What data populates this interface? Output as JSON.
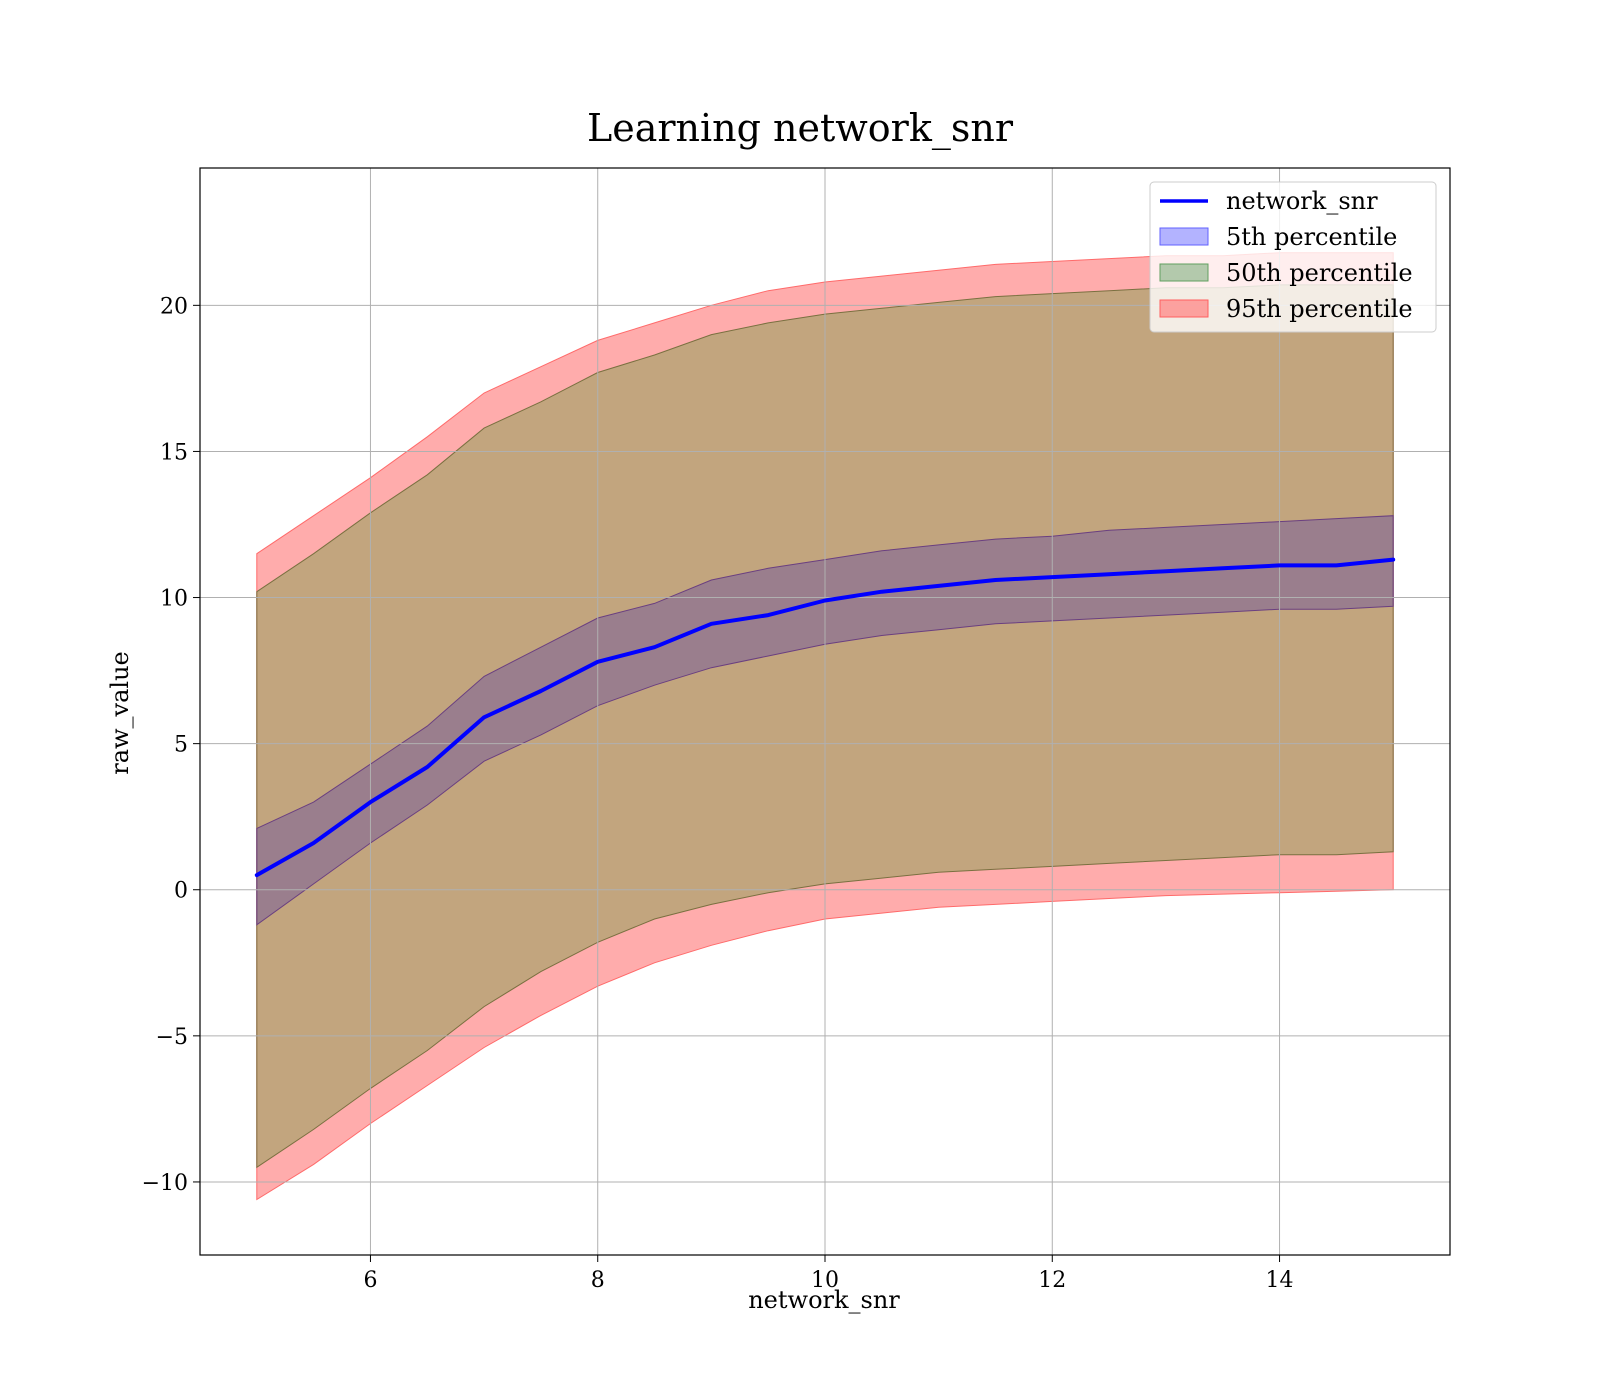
{
  "chart_data": {
    "type": "line",
    "title": "Learning network_snr",
    "xlabel": "network_snr",
    "ylabel": "raw_value",
    "xlim": [
      4.5,
      15.5
    ],
    "ylim": [
      -12.5,
      24.7
    ],
    "xticks": [
      "6",
      "8",
      "10",
      "12",
      "14"
    ],
    "yticks": [
      "−10",
      "−5",
      "0",
      "5",
      "10",
      "15",
      "20"
    ],
    "grid": true,
    "legend_position": "top-right",
    "colors": {
      "line": "#0000ff",
      "band5": "#8080ff",
      "band50": "#80b080",
      "band95": "#ff8080"
    },
    "x": [
      5,
      5.5,
      6,
      6.5,
      7,
      7.5,
      8,
      8.5,
      9,
      9.5,
      10,
      10.5,
      11,
      11.5,
      12,
      12.5,
      13,
      13.5,
      14,
      14.5,
      15
    ],
    "series": [
      {
        "name": "network_snr",
        "values": [
          0.5,
          1.6,
          3.0,
          4.2,
          5.9,
          6.8,
          7.8,
          8.3,
          9.1,
          9.4,
          9.9,
          10.2,
          10.4,
          10.6,
          10.7,
          10.8,
          10.9,
          11.0,
          11.1,
          11.1,
          11.3
        ]
      },
      {
        "name": "5th percentile",
        "lower": [
          -1.2,
          0.2,
          1.6,
          2.9,
          4.4,
          5.3,
          6.3,
          7.0,
          7.6,
          8.0,
          8.4,
          8.7,
          8.9,
          9.1,
          9.2,
          9.3,
          9.4,
          9.5,
          9.6,
          9.6,
          9.7
        ],
        "upper": [
          2.1,
          3.0,
          4.3,
          5.6,
          7.3,
          8.3,
          9.3,
          9.8,
          10.6,
          11.0,
          11.3,
          11.6,
          11.8,
          12.0,
          12.1,
          12.3,
          12.4,
          12.5,
          12.6,
          12.7,
          12.8
        ]
      },
      {
        "name": "50th percentile",
        "lower": [
          -9.5,
          -8.2,
          -6.8,
          -5.5,
          -4.0,
          -2.8,
          -1.8,
          -1.0,
          -0.5,
          -0.1,
          0.2,
          0.4,
          0.6,
          0.7,
          0.8,
          0.9,
          1.0,
          1.1,
          1.2,
          1.2,
          1.3
        ],
        "upper": [
          10.2,
          11.5,
          12.9,
          14.2,
          15.8,
          16.7,
          17.7,
          18.3,
          19.0,
          19.4,
          19.7,
          19.9,
          20.1,
          20.3,
          20.4,
          20.5,
          20.6,
          20.6,
          20.7,
          20.7,
          20.7
        ]
      },
      {
        "name": "95th percentile",
        "lower": [
          -10.6,
          -9.4,
          -8.0,
          -6.7,
          -5.4,
          -4.3,
          -3.3,
          -2.5,
          -1.9,
          -1.4,
          -1.0,
          -0.8,
          -0.6,
          -0.5,
          -0.4,
          -0.3,
          -0.2,
          -0.15,
          -0.1,
          -0.05,
          0.0
        ],
        "upper": [
          11.5,
          12.8,
          14.1,
          15.5,
          17.0,
          17.9,
          18.8,
          19.4,
          20.0,
          20.5,
          20.8,
          21.0,
          21.2,
          21.4,
          21.5,
          21.6,
          21.7,
          21.7,
          21.8,
          21.8,
          21.8
        ]
      }
    ]
  }
}
